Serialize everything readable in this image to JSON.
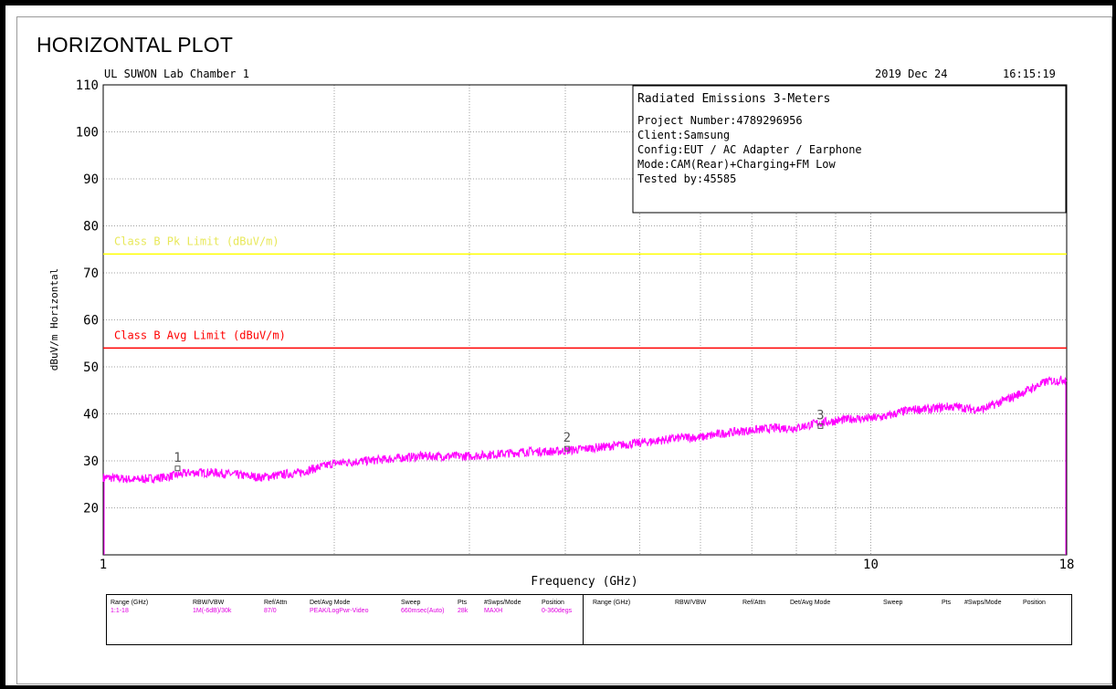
{
  "page_title": "HORIZONTAL PLOT",
  "header": {
    "lab": "UL SUWON Lab Chamber 1",
    "date": "2019 Dec 24",
    "time": "16:15:19"
  },
  "info_box": {
    "title": "Radiated Emissions 3-Meters",
    "lines": [
      "Project Number:4789296956",
      "Client:Samsung",
      "Config:EUT / AC Adapter / Earphone",
      "Mode:CAM(Rear)+Charging+FM Low",
      "Tested by:45585"
    ]
  },
  "colors": {
    "trace": "#ff00ff",
    "pk_limit": "#ffff00",
    "pk_label": "#e8e85a",
    "avg_limit": "#ff0000",
    "grid": "#a0a0a0",
    "table_value": "#e100e1"
  },
  "limits": {
    "pk": {
      "label": "Class B Pk Limit (dBuV/m)",
      "value": 74
    },
    "avg": {
      "label": "Class B Avg Limit (dBuV/m)",
      "value": 54
    }
  },
  "chart_data": {
    "type": "line",
    "xlabel": "Frequency (GHz)",
    "ylabel": "dBuV/m Horizontal",
    "x_scale": "log",
    "xlim": [
      1,
      18
    ],
    "ylim": [
      10,
      110
    ],
    "x_ticks": [
      1,
      10,
      18
    ],
    "x_tick_labels": [
      "1",
      "10",
      "18"
    ],
    "x_grid": [
      2,
      3,
      4,
      5,
      6,
      7,
      8,
      9
    ],
    "y_ticks": [
      20,
      30,
      40,
      50,
      60,
      70,
      80,
      90,
      100,
      110
    ],
    "y_tick_labels": [
      "20",
      "30",
      "40",
      "50",
      "60",
      "70",
      "80",
      "90",
      "100",
      "110"
    ],
    "grid": true,
    "series": [
      {
        "x": [
          1.0,
          1.1,
          1.2,
          1.3,
          1.4,
          1.5,
          1.6,
          1.7,
          1.8,
          1.9,
          2.0,
          2.2,
          2.4,
          2.6,
          2.8,
          3.0,
          3.3,
          3.6,
          3.9,
          4.2,
          4.5,
          4.8,
          5.1,
          5.4,
          5.7,
          6.0,
          6.5,
          7.0,
          7.5,
          8.0,
          8.5,
          9.0,
          9.5,
          10.0,
          10.5,
          11.0,
          11.5,
          12.0,
          12.5,
          13.0,
          13.5,
          14.0,
          14.5,
          15.0,
          15.5,
          16.0,
          16.5,
          17.0,
          17.5,
          18.0
        ],
        "y": [
          26.5,
          26.0,
          26.5,
          27.5,
          27.5,
          27.0,
          26.5,
          27.0,
          27.5,
          28.5,
          29.5,
          30.0,
          30.5,
          31.0,
          31.0,
          31.0,
          31.5,
          32.0,
          32.0,
          32.5,
          33.0,
          33.5,
          34.0,
          34.5,
          35.0,
          35.0,
          36.0,
          36.5,
          37.0,
          37.0,
          38.0,
          38.5,
          39.0,
          39.0,
          39.5,
          40.5,
          41.0,
          41.0,
          41.5,
          41.5,
          41.0,
          41.0,
          42.0,
          43.0,
          44.0,
          45.0,
          46.0,
          47.0,
          47.0,
          47.5
        ]
      }
    ],
    "markers": [
      {
        "label": "1",
        "x": 1.25,
        "y": 28.3
      },
      {
        "label": "2",
        "x": 4.02,
        "y": 32.5
      },
      {
        "label": "3",
        "x": 8.6,
        "y": 37.3
      }
    ]
  },
  "settings_table": {
    "headers_left": [
      "Range (GHz)",
      "RBW/VBW",
      "Ref/Attn",
      "Det/Avg Mode",
      "Sweep",
      "Pts",
      "#Swps/Mode",
      "Position"
    ],
    "values_left": [
      "1:1-18",
      "1M(-6dB)/30k",
      "87/0",
      "PEAK/LogPwr-Video",
      "660msec(Auto)",
      "28k",
      "MAXH",
      "0-360degs"
    ],
    "headers_right": [
      "Range (GHz)",
      "RBW/VBW",
      "Ref/Attn",
      "Det/Avg Mode",
      "Sweep",
      "Pts",
      "#Swps/Mode",
      "Position"
    ]
  }
}
